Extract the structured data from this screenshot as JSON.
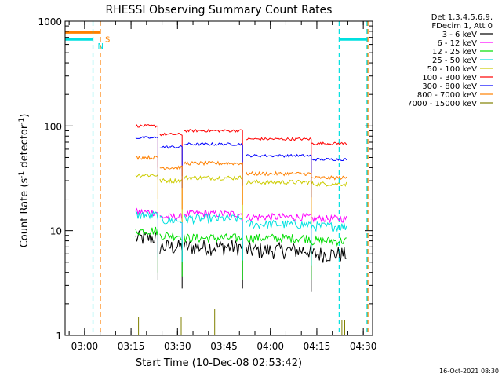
{
  "chart_data": {
    "type": "line",
    "title": "RHESSI Observing Summary Count Rates",
    "xlabel": "Start Time (10-Dec-08 02:53:42)",
    "ylabel_main": "Count Rate (s",
    "ylabel_sup1": "-1",
    "ylabel_mid": " detector",
    "ylabel_sup2": "-1",
    "ylabel_end": ")",
    "yscale": "log",
    "ylim": [
      1,
      1000
    ],
    "x_ticks": [
      {
        "t": 3.0,
        "label": "03:00"
      },
      {
        "t": 3.25,
        "label": "03:15"
      },
      {
        "t": 3.5,
        "label": "03:30"
      },
      {
        "t": 3.75,
        "label": "03:45"
      },
      {
        "t": 4.0,
        "label": "04:00"
      },
      {
        "t": 4.25,
        "label": "04:15"
      },
      {
        "t": 4.5,
        "label": "04:30"
      }
    ],
    "xlim_hours": [
      2.895,
      4.55
    ],
    "y_ticks": [
      {
        "v": 1,
        "label": "1"
      },
      {
        "v": 10,
        "label": "10"
      },
      {
        "v": 100,
        "label": "100"
      },
      {
        "v": 1000,
        "label": "1000"
      }
    ],
    "legend_header": [
      "Det 1,3,4,5,6,9,",
      "FDecim 1, Att 0"
    ],
    "legend_position": "right",
    "series": [
      {
        "name": "3 - 6 keV",
        "color": "#000000",
        "levels": [
          8.5,
          7.0,
          7.0,
          6.5,
          6.0
        ],
        "noise": 0.18
      },
      {
        "name": "6 - 12 keV",
        "color": "#ff00ff",
        "levels": [
          15.0,
          13.5,
          14.5,
          13.5,
          13.0
        ],
        "noise": 0.08
      },
      {
        "name": "12 - 25 keV",
        "color": "#00dd00",
        "levels": [
          10.0,
          9.0,
          8.5,
          8.5,
          8.0
        ],
        "noise": 0.1
      },
      {
        "name": "25 - 50 keV",
        "color": "#00e0e0",
        "levels": [
          14.0,
          12.5,
          13.0,
          11.5,
          11.0
        ],
        "noise": 0.1
      },
      {
        "name": "50 - 100 keV",
        "color": "#cccc00",
        "levels": [
          34.0,
          30.0,
          32.0,
          29.0,
          28.0
        ],
        "noise": 0.05
      },
      {
        "name": "100 - 300 keV",
        "color": "#ff0000",
        "levels": [
          100.0,
          83.0,
          90.0,
          75.0,
          68.0
        ],
        "noise": 0.03
      },
      {
        "name": "300 - 800 keV",
        "color": "#0000ff",
        "levels": [
          77.0,
          63.0,
          67.0,
          52.0,
          48.0
        ],
        "noise": 0.03
      },
      {
        "name": "800 - 7000 keV",
        "color": "#ff8000",
        "levels": [
          50.0,
          40.0,
          44.0,
          35.0,
          32.0
        ],
        "noise": 0.04
      },
      {
        "name": "7000 - 15000 keV",
        "color": "#808000",
        "levels": [
          1.5,
          1.5,
          1.8,
          1.0,
          1.4
        ],
        "noise": 0.0
      }
    ],
    "data_segments_hours": [
      [
        3.275,
        3.395
      ],
      [
        3.405,
        3.525
      ],
      [
        3.535,
        3.85
      ],
      [
        3.87,
        4.22
      ],
      [
        4.22,
        4.41
      ]
    ],
    "flags": [
      {
        "label": "S",
        "color": "#ff8000",
        "value": 780,
        "x_start": 2.895,
        "x_end": 3.085
      },
      {
        "label": "N",
        "color": "#00e0e0",
        "value": 670,
        "x_start": 2.895,
        "x_end": 3.045
      },
      {
        "label": "",
        "color": "#00e0e0",
        "value": 670,
        "x_start": 4.37,
        "x_end": 4.52
      }
    ],
    "flag_boundaries_hours": [
      {
        "t": 3.045,
        "color": "#00e0e0"
      },
      {
        "t": 3.085,
        "color": "#ff8000"
      },
      {
        "t": 4.37,
        "color": "#00e0e0"
      },
      {
        "t": 4.52,
        "color": "#00e0e0"
      },
      {
        "t": 4.525,
        "color": "#ff8000"
      }
    ],
    "footer_timestamp": "16-Oct-2021 08:30"
  }
}
